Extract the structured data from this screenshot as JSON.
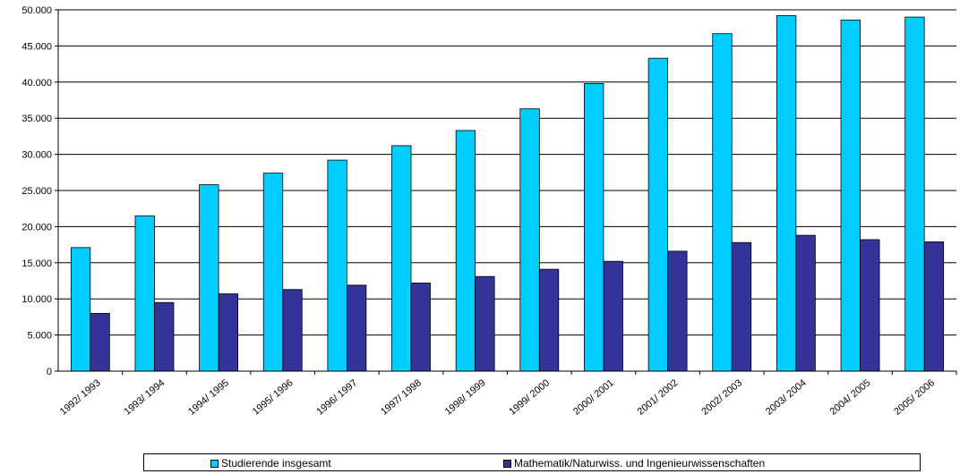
{
  "chart_data": {
    "type": "bar",
    "categories": [
      "1992/ 1993",
      "1993/ 1994",
      "1994/ 1995",
      "1995/ 1996",
      "1996/ 1997",
      "1997/ 1998",
      "1998/ 1999",
      "1999/ 2000",
      "2000/ 2001",
      "2001/ 2002",
      "2002/ 2003",
      "2003/ 2004",
      "2004/ 2005",
      "2005/ 2006"
    ],
    "series": [
      {
        "name": "Studierende insgesamt",
        "color": "#00ccff",
        "values": [
          17100,
          21500,
          25800,
          27400,
          29200,
          31200,
          33300,
          36300,
          39800,
          43300,
          46700,
          49200,
          48600,
          49000
        ]
      },
      {
        "name": "Mathematik/Naturwiss. und Ingenieurwissenschaften",
        "color": "#333399",
        "values": [
          8000,
          9500,
          10700,
          11300,
          11900,
          12200,
          13100,
          14100,
          15200,
          16600,
          17800,
          18800,
          18200,
          17900
        ]
      }
    ],
    "y_ticks": [
      "0",
      "5.000",
      "10.000",
      "15.000",
      "20.000",
      "25.000",
      "30.000",
      "35.000",
      "40.000",
      "45.000",
      "50.000"
    ],
    "ylim": [
      0,
      50000
    ],
    "y_step": 5000,
    "grid": true,
    "legend_position": "bottom"
  }
}
